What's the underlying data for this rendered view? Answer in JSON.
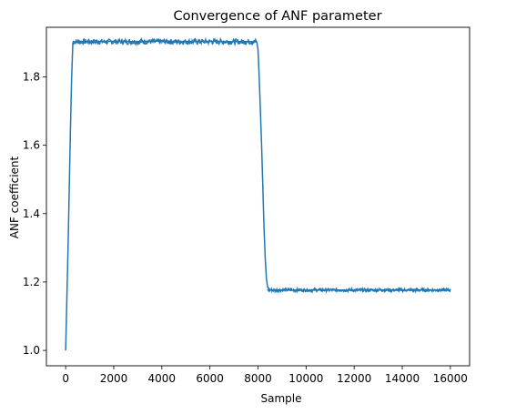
{
  "chart_data": {
    "type": "line",
    "title": "Convergence of ANF parameter",
    "xlabel": "Sample",
    "ylabel": "ANF coefficient",
    "xlim": [
      -800,
      16800
    ],
    "ylim": [
      0.955,
      1.945
    ],
    "xticks": [
      0,
      2000,
      4000,
      6000,
      8000,
      10000,
      12000,
      14000,
      16000
    ],
    "xtick_labels": [
      "0",
      "2000",
      "4000",
      "6000",
      "8000",
      "10000",
      "12000",
      "14000",
      "16000"
    ],
    "yticks": [
      1.0,
      1.2,
      1.4,
      1.6,
      1.8
    ],
    "ytick_labels": [
      "1.0",
      "1.2",
      "1.4",
      "1.6",
      "1.8"
    ],
    "grid": false,
    "series": [
      {
        "color": "#1f77b4",
        "x": [
          0,
          100,
          200,
          250,
          300,
          400,
          1000,
          2000,
          3000,
          4000,
          5000,
          6000,
          7000,
          7800,
          7950,
          8000,
          8050,
          8100,
          8150,
          8200,
          8250,
          8300,
          8350,
          8400,
          8500,
          9000,
          10000,
          11000,
          12000,
          13000,
          14000,
          15000,
          16000
        ],
        "y": [
          1.0,
          1.3,
          1.65,
          1.8,
          1.9,
          1.903,
          1.903,
          1.904,
          1.903,
          1.905,
          1.903,
          1.904,
          1.903,
          1.903,
          1.902,
          1.88,
          1.8,
          1.7,
          1.6,
          1.48,
          1.36,
          1.27,
          1.21,
          1.185,
          1.177,
          1.177,
          1.176,
          1.177,
          1.176,
          1.177,
          1.176,
          1.177,
          1.176
        ]
      }
    ]
  }
}
